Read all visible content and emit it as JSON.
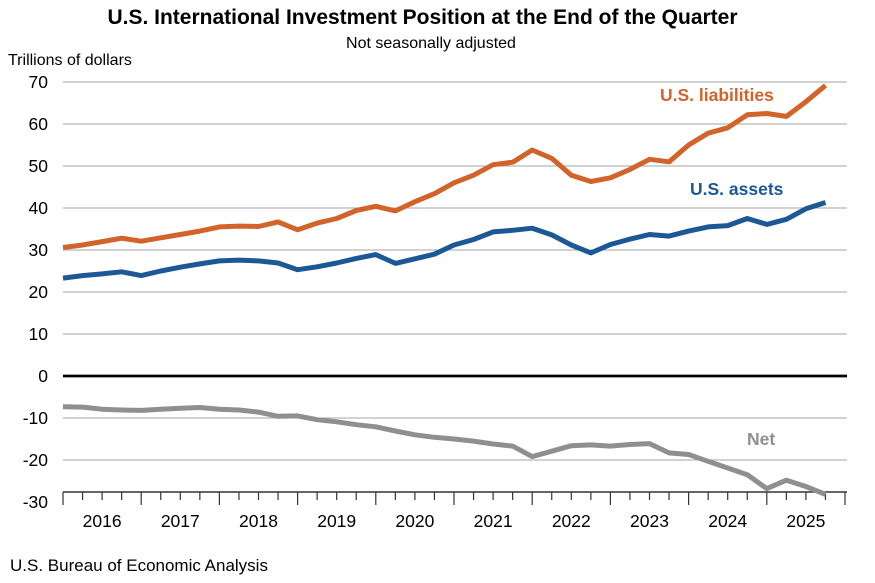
{
  "title": "U.S. International Investment Position at the End of the Quarter",
  "subtitle": "Not seasonally adjusted",
  "y_axis_unit_label": "Trillions of dollars",
  "source": "U.S. Bureau of Economic Analysis",
  "chart_data": {
    "type": "line",
    "x": [
      "2015 Q4",
      "2016 Q1",
      "2016 Q2",
      "2016 Q3",
      "2016 Q4",
      "2017 Q1",
      "2017 Q2",
      "2017 Q3",
      "2017 Q4",
      "2018 Q1",
      "2018 Q2",
      "2018 Q3",
      "2018 Q4",
      "2019 Q1",
      "2019 Q2",
      "2019 Q3",
      "2019 Q4",
      "2020 Q1",
      "2020 Q2",
      "2020 Q3",
      "2020 Q4",
      "2021 Q1",
      "2021 Q2",
      "2021 Q3",
      "2021 Q4",
      "2022 Q1",
      "2022 Q2",
      "2022 Q3",
      "2022 Q4",
      "2023 Q1",
      "2023 Q2",
      "2023 Q3",
      "2023 Q4",
      "2024 Q1",
      "2024 Q2",
      "2024 Q3",
      "2024 Q4",
      "2025 Q1",
      "2025 Q2",
      "2025 Q3"
    ],
    "series": [
      {
        "name": "U.S. liabilities",
        "color": "#d2632a",
        "values": [
          30.6,
          31.2,
          32.0,
          32.8,
          32.1,
          32.9,
          33.7,
          34.5,
          35.5,
          35.7,
          35.6,
          36.7,
          34.8,
          36.4,
          37.5,
          39.4,
          40.4,
          39.3,
          41.5,
          43.4,
          46.0,
          47.8,
          50.3,
          50.9,
          53.8,
          51.8,
          47.8,
          46.3,
          47.2,
          49.2,
          51.6,
          51.0,
          55.0,
          57.8,
          59.1,
          62.2,
          62.5,
          61.8,
          65.3,
          69.2
        ]
      },
      {
        "name": "U.S. assets",
        "color": "#1c5796",
        "values": [
          23.3,
          23.9,
          24.3,
          24.8,
          23.9,
          25.0,
          25.9,
          26.7,
          27.4,
          27.6,
          27.4,
          26.9,
          25.3,
          26.0,
          26.9,
          28.0,
          28.9,
          26.8,
          27.9,
          29.0,
          31.2,
          32.5,
          34.3,
          34.7,
          35.2,
          33.6,
          31.2,
          29.3,
          31.3,
          32.6,
          33.7,
          33.3,
          34.5,
          35.5,
          35.8,
          37.5,
          36.1,
          37.3,
          39.8,
          41.3
        ]
      },
      {
        "name": "Net",
        "color": "#8f8f8f",
        "values": [
          -7.3,
          -7.4,
          -7.9,
          -8.1,
          -8.2,
          -7.9,
          -7.7,
          -7.5,
          -7.9,
          -8.1,
          -8.6,
          -9.6,
          -9.5,
          -10.4,
          -10.9,
          -11.6,
          -12.1,
          -13.1,
          -14.0,
          -14.6,
          -15.0,
          -15.5,
          -16.2,
          -16.7,
          -19.2,
          -17.9,
          -16.6,
          -16.4,
          -16.7,
          -16.3,
          -16.1,
          -18.3,
          -18.7,
          -20.3,
          -21.9,
          -23.5,
          -26.8,
          -24.8,
          -26.3,
          -28.2
        ]
      }
    ],
    "ylim": [
      -30,
      70
    ],
    "y_ticks": [
      70,
      60,
      50,
      40,
      30,
      20,
      10,
      0,
      -10,
      -20,
      -30
    ],
    "x_year_labels": [
      "2016",
      "2017",
      "2018",
      "2019",
      "2020",
      "2021",
      "2022",
      "2023",
      "2024",
      "2025"
    ],
    "grid": true,
    "zero_line": true,
    "legend_position": "inline-end-of-line-annotations"
  }
}
